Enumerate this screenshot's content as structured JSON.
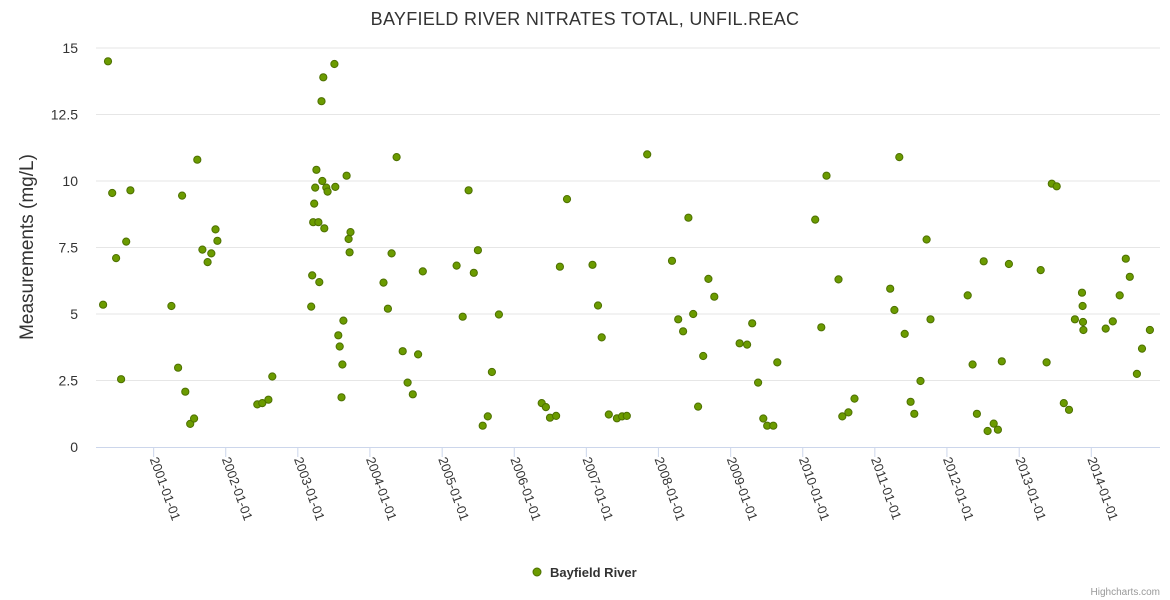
{
  "chart_data": {
    "type": "scatter",
    "title": "BAYFIELD RIVER NITRATES TOTAL, UNFIL.REAC",
    "ylabel": "Measurements (mg/L)",
    "xlabel": "",
    "ylim": [
      0,
      15
    ],
    "yticks": [
      "0",
      "2.5",
      "5",
      "7.5",
      "10",
      "12.5",
      "15"
    ],
    "xlim": [
      "2000-03-15",
      "2014-12-15"
    ],
    "xticks": [
      "2001-01-01",
      "2002-01-01",
      "2003-01-01",
      "2004-01-01",
      "2005-01-01",
      "2006-01-01",
      "2007-01-01",
      "2008-01-01",
      "2009-01-01",
      "2010-01-01",
      "2011-01-01",
      "2012-01-01",
      "2013-01-01",
      "2014-01-01"
    ],
    "grid": true,
    "legend_position": "bottom-center",
    "series": [
      {
        "name": "Bayfield River",
        "color": "#6b9b00",
        "points": [
          [
            "2000-04-20",
            5.35
          ],
          [
            "2000-05-15",
            14.5
          ],
          [
            "2000-06-05",
            9.55
          ],
          [
            "2000-06-25",
            7.1
          ],
          [
            "2000-07-20",
            2.55
          ],
          [
            "2000-08-15",
            7.72
          ],
          [
            "2000-09-05",
            9.65
          ],
          [
            "2001-04-01",
            5.3
          ],
          [
            "2001-05-05",
            2.98
          ],
          [
            "2001-05-25",
            9.45
          ],
          [
            "2001-06-10",
            2.08
          ],
          [
            "2001-07-05",
            0.87
          ],
          [
            "2001-07-25",
            1.07
          ],
          [
            "2001-08-10",
            10.8
          ],
          [
            "2001-09-05",
            7.42
          ],
          [
            "2001-10-01",
            6.95
          ],
          [
            "2001-10-20",
            7.28
          ],
          [
            "2001-11-10",
            8.18
          ],
          [
            "2001-11-20",
            7.75
          ],
          [
            "2002-06-10",
            1.6
          ],
          [
            "2002-07-05",
            1.65
          ],
          [
            "2002-08-05",
            1.78
          ],
          [
            "2002-08-25",
            2.65
          ],
          [
            "2003-03-10",
            5.28
          ],
          [
            "2003-03-15",
            6.45
          ],
          [
            "2003-03-20",
            8.45
          ],
          [
            "2003-03-25",
            9.15
          ],
          [
            "2003-03-30",
            9.75
          ],
          [
            "2003-04-05",
            10.42
          ],
          [
            "2003-04-15",
            8.45
          ],
          [
            "2003-04-20",
            6.2
          ],
          [
            "2003-05-01",
            13.0
          ],
          [
            "2003-05-05",
            10.0
          ],
          [
            "2003-05-10",
            13.9
          ],
          [
            "2003-05-15",
            8.22
          ],
          [
            "2003-05-25",
            9.75
          ],
          [
            "2003-06-01",
            9.6
          ],
          [
            "2003-07-05",
            14.4
          ],
          [
            "2003-07-10",
            9.78
          ],
          [
            "2003-07-25",
            4.2
          ],
          [
            "2003-08-01",
            3.78
          ],
          [
            "2003-08-10",
            1.87
          ],
          [
            "2003-08-15",
            3.1
          ],
          [
            "2003-08-20",
            4.75
          ],
          [
            "2003-09-05",
            10.2
          ],
          [
            "2003-09-15",
            7.82
          ],
          [
            "2003-09-20",
            7.32
          ],
          [
            "2003-09-25",
            8.08
          ],
          [
            "2004-03-10",
            6.18
          ],
          [
            "2004-04-01",
            5.2
          ],
          [
            "2004-04-20",
            7.28
          ],
          [
            "2004-05-15",
            10.9
          ],
          [
            "2004-06-15",
            3.6
          ],
          [
            "2004-07-10",
            2.42
          ],
          [
            "2004-08-05",
            1.98
          ],
          [
            "2004-09-01",
            3.48
          ],
          [
            "2004-09-25",
            6.6
          ],
          [
            "2005-03-15",
            6.82
          ],
          [
            "2005-04-15",
            4.9
          ],
          [
            "2005-05-15",
            9.65
          ],
          [
            "2005-06-10",
            6.55
          ],
          [
            "2005-07-01",
            7.4
          ],
          [
            "2005-07-25",
            0.8
          ],
          [
            "2005-08-20",
            1.15
          ],
          [
            "2005-09-10",
            2.82
          ],
          [
            "2005-10-15",
            4.98
          ],
          [
            "2006-05-20",
            1.65
          ],
          [
            "2006-06-10",
            1.5
          ],
          [
            "2006-07-01",
            1.1
          ],
          [
            "2006-08-01",
            1.17
          ],
          [
            "2006-08-20",
            6.78
          ],
          [
            "2006-09-25",
            9.32
          ],
          [
            "2007-02-01",
            6.85
          ],
          [
            "2007-03-01",
            5.32
          ],
          [
            "2007-03-20",
            4.12
          ],
          [
            "2007-04-25",
            1.22
          ],
          [
            "2007-06-05",
            1.08
          ],
          [
            "2007-07-01",
            1.15
          ],
          [
            "2007-07-25",
            1.17
          ],
          [
            "2007-11-05",
            11.0
          ],
          [
            "2008-03-10",
            7.0
          ],
          [
            "2008-04-10",
            4.8
          ],
          [
            "2008-05-05",
            4.35
          ],
          [
            "2008-06-01",
            8.62
          ],
          [
            "2008-06-25",
            5.0
          ],
          [
            "2008-07-20",
            1.52
          ],
          [
            "2008-08-15",
            3.42
          ],
          [
            "2008-09-10",
            6.32
          ],
          [
            "2008-10-10",
            5.65
          ],
          [
            "2009-02-15",
            3.9
          ],
          [
            "2009-03-25",
            3.85
          ],
          [
            "2009-04-20",
            4.65
          ],
          [
            "2009-05-20",
            2.42
          ],
          [
            "2009-06-15",
            1.07
          ],
          [
            "2009-07-05",
            0.8
          ],
          [
            "2009-08-05",
            0.8
          ],
          [
            "2009-08-25",
            3.18
          ],
          [
            "2010-03-05",
            8.55
          ],
          [
            "2010-04-05",
            4.5
          ],
          [
            "2010-05-01",
            10.2
          ],
          [
            "2010-07-01",
            6.3
          ],
          [
            "2010-07-20",
            1.15
          ],
          [
            "2010-08-20",
            1.3
          ],
          [
            "2010-09-20",
            1.82
          ],
          [
            "2011-03-20",
            5.95
          ],
          [
            "2011-04-10",
            5.15
          ],
          [
            "2011-05-05",
            10.9
          ],
          [
            "2011-06-01",
            4.25
          ],
          [
            "2011-07-01",
            1.7
          ],
          [
            "2011-07-20",
            1.25
          ],
          [
            "2011-08-20",
            2.48
          ],
          [
            "2011-09-20",
            7.8
          ],
          [
            "2011-10-10",
            4.8
          ],
          [
            "2012-04-15",
            5.7
          ],
          [
            "2012-05-10",
            3.1
          ],
          [
            "2012-06-01",
            1.25
          ],
          [
            "2012-07-05",
            6.98
          ],
          [
            "2012-07-25",
            0.6
          ],
          [
            "2012-08-25",
            0.88
          ],
          [
            "2012-09-15",
            0.65
          ],
          [
            "2012-10-05",
            3.22
          ],
          [
            "2012-11-10",
            6.88
          ],
          [
            "2013-04-20",
            6.65
          ],
          [
            "2013-05-20",
            3.18
          ],
          [
            "2013-06-15",
            9.9
          ],
          [
            "2013-07-10",
            9.8
          ],
          [
            "2013-08-15",
            1.65
          ],
          [
            "2013-09-10",
            1.4
          ],
          [
            "2013-10-10",
            4.8
          ],
          [
            "2013-11-15",
            5.8
          ],
          [
            "2013-11-18",
            5.3
          ],
          [
            "2013-11-20",
            4.7
          ],
          [
            "2013-11-22",
            4.4
          ],
          [
            "2014-03-15",
            4.45
          ],
          [
            "2014-04-20",
            4.72
          ],
          [
            "2014-05-25",
            5.7
          ],
          [
            "2014-06-25",
            7.08
          ],
          [
            "2014-07-15",
            6.4
          ],
          [
            "2014-08-20",
            2.75
          ],
          [
            "2014-09-15",
            3.7
          ],
          [
            "2014-10-25",
            4.4
          ]
        ]
      }
    ]
  },
  "credits": "Highcharts.com"
}
